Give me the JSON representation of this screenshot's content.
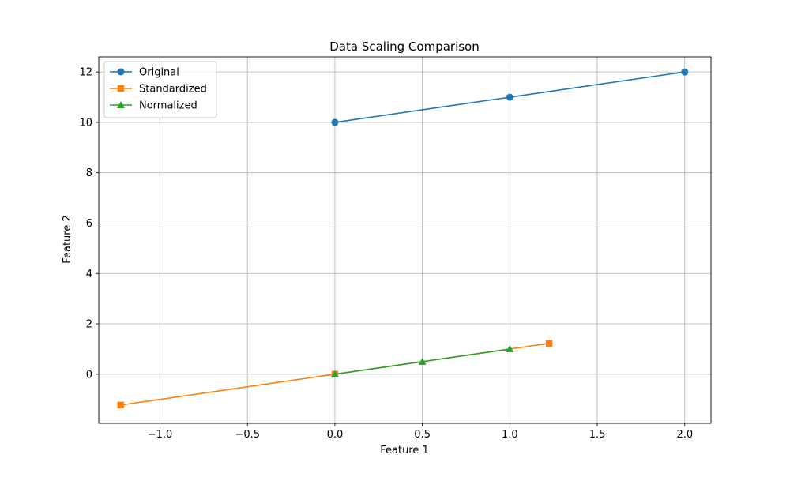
{
  "chart_data": {
    "type": "line",
    "title": "Data Scaling Comparison",
    "xlabel": "Feature 1",
    "ylabel": "Feature 2",
    "xlim": [
      -1.35,
      2.15
    ],
    "ylim": [
      -1.95,
      12.6
    ],
    "x_ticks": [
      -1.0,
      -0.5,
      0.0,
      0.5,
      1.0,
      1.5,
      2.0
    ],
    "x_tick_labels": [
      "−1.0",
      "−0.5",
      "0.0",
      "0.5",
      "1.0",
      "1.5",
      "2.0"
    ],
    "y_ticks": [
      0,
      2,
      4,
      6,
      8,
      10,
      12
    ],
    "y_tick_labels": [
      "0",
      "2",
      "4",
      "6",
      "8",
      "10",
      "12"
    ],
    "grid": true,
    "legend_position": "top-left",
    "series": [
      {
        "name": "Original",
        "color": "#1f77b4",
        "marker": "circle",
        "x": [
          0,
          1,
          2
        ],
        "y": [
          10,
          11,
          12
        ]
      },
      {
        "name": "Standardized",
        "color": "#ff7f0e",
        "marker": "square",
        "x": [
          -1.2247,
          0,
          1.2247
        ],
        "y": [
          -1.2247,
          0,
          1.2247
        ]
      },
      {
        "name": "Normalized",
        "color": "#2ca02c",
        "marker": "triangle",
        "x": [
          0,
          0.5,
          1
        ],
        "y": [
          0,
          0.5,
          1
        ]
      }
    ]
  }
}
